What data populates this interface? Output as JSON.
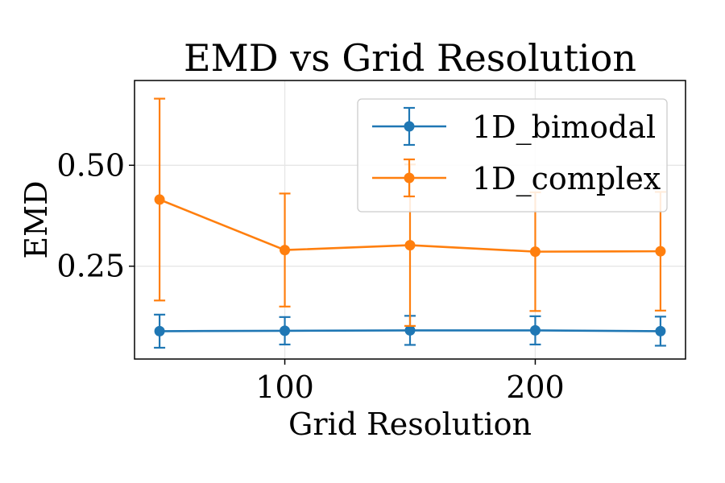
{
  "chart_data": {
    "type": "line",
    "title": "EMD vs Grid Resolution",
    "xlabel": "Grid Resolution",
    "ylabel": "EMD",
    "xlim": [
      40,
      260
    ],
    "ylim": [
      0.02,
      0.71
    ],
    "xticks": [
      100,
      200
    ],
    "xtick_labels": [
      "100",
      "200"
    ],
    "yticks": [
      0.25,
      0.5
    ],
    "ytick_labels": [
      "0.25",
      "0.50"
    ],
    "grid": true,
    "legend_position": "top-right",
    "x": [
      50,
      100,
      150,
      200,
      250
    ],
    "series": [
      {
        "name": "1D_bimodal",
        "color": "#1f77b4",
        "values": [
          0.089,
          0.09,
          0.091,
          0.091,
          0.089
        ],
        "errors": [
          0.041,
          0.034,
          0.036,
          0.035,
          0.036
        ]
      },
      {
        "name": "1D_complex",
        "color": "#ff7f0e",
        "values": [
          0.415,
          0.29,
          0.302,
          0.286,
          0.287
        ],
        "errors": [
          0.25,
          0.14,
          0.2,
          0.147,
          0.147
        ]
      }
    ]
  }
}
